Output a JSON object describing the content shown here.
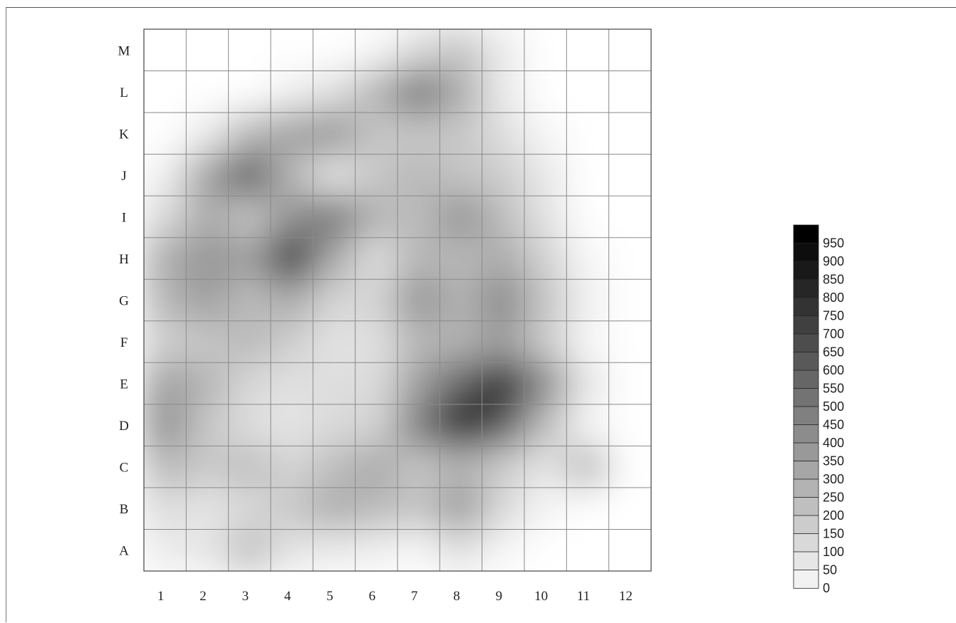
{
  "chart_data": {
    "type": "heatmap",
    "title": "",
    "xlabel": "",
    "ylabel": "",
    "columns": [
      "1",
      "2",
      "3",
      "4",
      "5",
      "6",
      "7",
      "8",
      "9",
      "10",
      "11",
      "12"
    ],
    "rows": [
      "M",
      "L",
      "K",
      "J",
      "I",
      "H",
      "G",
      "F",
      "E",
      "D",
      "C",
      "B",
      "A"
    ],
    "colorscale": "grayscale (white = 0, black = 950+)",
    "legend_levels": [
      "950",
      "900",
      "850",
      "800",
      "750",
      "700",
      "650",
      "600",
      "550",
      "500",
      "450",
      "400",
      "350",
      "300",
      "250",
      "200",
      "150",
      "100",
      "50",
      "0"
    ],
    "legend_position": "right",
    "grid": true,
    "values": [
      [
        0,
        0,
        0,
        0,
        0,
        30,
        150,
        230,
        80,
        0,
        0,
        0
      ],
      [
        0,
        0,
        0,
        60,
        120,
        300,
        560,
        330,
        80,
        0,
        0,
        0
      ],
      [
        0,
        80,
        280,
        380,
        430,
        220,
        220,
        220,
        130,
        30,
        0,
        0
      ],
      [
        60,
        380,
        680,
        280,
        90,
        220,
        280,
        230,
        200,
        90,
        0,
        0
      ],
      [
        150,
        330,
        220,
        430,
        560,
        300,
        260,
        440,
        260,
        110,
        0,
        0
      ],
      [
        330,
        420,
        380,
        900,
        330,
        120,
        290,
        270,
        330,
        180,
        30,
        0
      ],
      [
        290,
        380,
        260,
        330,
        160,
        170,
        430,
        300,
        470,
        230,
        60,
        0
      ],
      [
        190,
        220,
        280,
        190,
        110,
        120,
        280,
        300,
        380,
        200,
        30,
        0
      ],
      [
        380,
        300,
        150,
        120,
        130,
        140,
        380,
        620,
        900,
        470,
        100,
        0
      ],
      [
        450,
        220,
        130,
        100,
        150,
        170,
        520,
        940,
        650,
        260,
        30,
        0
      ],
      [
        280,
        210,
        260,
        170,
        260,
        340,
        220,
        300,
        200,
        100,
        280,
        0
      ],
      [
        140,
        100,
        150,
        220,
        330,
        270,
        230,
        400,
        150,
        40,
        0,
        0
      ],
      [
        80,
        100,
        260,
        100,
        80,
        60,
        30,
        120,
        30,
        0,
        0,
        0
      ]
    ]
  }
}
